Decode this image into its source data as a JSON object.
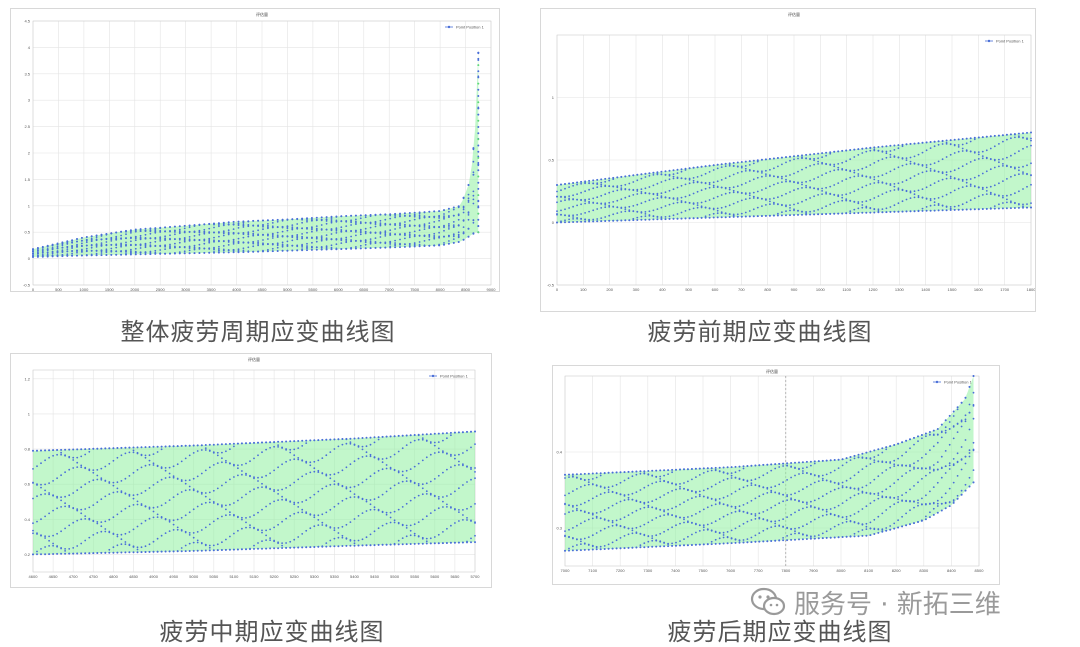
{
  "captions": {
    "overall": "整体疲劳周期应变曲线图",
    "early": "疲劳前期应变曲线图",
    "middle": "疲劳中期应变曲线图",
    "late": "疲劳后期应变曲线图"
  },
  "watermark": {
    "text": "服务号 · 新拓三维",
    "icon": "wechat-icon"
  },
  "colors": {
    "points": "#4a6fd8",
    "fill": "#8ff0a0",
    "grid": "#e4e4e4"
  },
  "chart_data": [
    {
      "id": "overall",
      "type": "scatter",
      "title": "评估量",
      "legend": "Point Position 1",
      "legend_position": "top-right",
      "grid": true,
      "xlim": [
        0,
        9000
      ],
      "ylim": [
        -0.5,
        4.5
      ],
      "xticks": [
        0,
        500,
        1000,
        1500,
        2000,
        2500,
        3000,
        3500,
        4000,
        4500,
        5000,
        5500,
        6000,
        6500,
        7000,
        7500,
        8000,
        8500,
        9000
      ],
      "yticks": [
        -0.5,
        0,
        0.5,
        1,
        1.5,
        2,
        2.5,
        3,
        3.5,
        4,
        4.5
      ],
      "series": [
        {
          "role": "min",
          "x": [
            0,
            1000,
            2000,
            3000,
            4000,
            5000,
            6000,
            7000,
            8000,
            8400,
            8700
          ],
          "y": [
            0.03,
            0.06,
            0.08,
            0.1,
            0.12,
            0.15,
            0.18,
            0.21,
            0.25,
            0.32,
            0.5
          ]
        },
        {
          "role": "max",
          "x": [
            0,
            1000,
            2000,
            3000,
            4000,
            5000,
            6000,
            7000,
            8000,
            8400,
            8600,
            8700,
            8750
          ],
          "y": [
            0.18,
            0.4,
            0.55,
            0.62,
            0.7,
            0.74,
            0.8,
            0.84,
            0.9,
            1.0,
            1.5,
            2.6,
            3.9
          ]
        }
      ]
    },
    {
      "id": "early",
      "type": "scatter",
      "title": "评估量",
      "legend": "Point Position 1",
      "legend_position": "top-right",
      "grid": true,
      "xlim": [
        0,
        1800
      ],
      "ylim": [
        -0.5,
        1.5
      ],
      "xticks": [
        0,
        100,
        200,
        300,
        400,
        500,
        600,
        700,
        800,
        900,
        1000,
        1100,
        1200,
        1300,
        1400,
        1500,
        1600,
        1700,
        1800
      ],
      "yticks": [
        -0.5,
        0,
        0.5,
        1
      ],
      "series": [
        {
          "role": "min",
          "x": [
            0,
            300,
            600,
            900,
            1200,
            1500,
            1800
          ],
          "y": [
            0.0,
            0.02,
            0.04,
            0.06,
            0.08,
            0.1,
            0.12
          ]
        },
        {
          "role": "max",
          "x": [
            0,
            300,
            600,
            900,
            1200,
            1500,
            1800
          ],
          "y": [
            0.3,
            0.38,
            0.46,
            0.53,
            0.6,
            0.66,
            0.72
          ]
        }
      ]
    },
    {
      "id": "middle",
      "type": "scatter",
      "title": "评估量",
      "legend": "Point Position 1",
      "legend_position": "top-right",
      "grid": true,
      "xlim": [
        4600,
        5700
      ],
      "ylim": [
        0.1,
        1.25
      ],
      "xticks": [
        4600,
        4650,
        4700,
        4750,
        4800,
        4850,
        4900,
        4950,
        5000,
        5050,
        5100,
        5150,
        5200,
        5250,
        5300,
        5350,
        5400,
        5450,
        5500,
        5550,
        5600,
        5650,
        5700
      ],
      "yticks": [
        0.2,
        0.4,
        0.6,
        0.8,
        1,
        1.2
      ],
      "series": [
        {
          "role": "min",
          "x": [
            4600,
            5000,
            5400,
            5700
          ],
          "y": [
            0.2,
            0.22,
            0.25,
            0.27
          ]
        },
        {
          "role": "max",
          "x": [
            4600,
            5000,
            5400,
            5700
          ],
          "y": [
            0.79,
            0.82,
            0.86,
            0.9
          ]
        }
      ]
    },
    {
      "id": "late",
      "type": "scatter",
      "title": "评估量",
      "legend": "Point Position 1",
      "legend_position": "top-right",
      "grid": true,
      "xlim": [
        7000,
        8500
      ],
      "ylim": [
        0.25,
        0.5
      ],
      "xticks": [
        7000,
        7100,
        7200,
        7300,
        7400,
        7500,
        7600,
        7700,
        7800,
        7900,
        8000,
        8100,
        8200,
        8300,
        8400,
        8500
      ],
      "yticks": [
        0.3,
        0.4
      ],
      "series": [
        {
          "role": "min",
          "x": [
            7000,
            7600,
            8100,
            8300,
            8400,
            8480
          ],
          "y": [
            0.27,
            0.28,
            0.29,
            0.31,
            0.33,
            0.36
          ]
        },
        {
          "role": "max",
          "x": [
            7000,
            7600,
            8000,
            8200,
            8350,
            8450,
            8480
          ],
          "y": [
            0.37,
            0.38,
            0.39,
            0.41,
            0.43,
            0.47,
            0.5
          ]
        }
      ]
    }
  ]
}
